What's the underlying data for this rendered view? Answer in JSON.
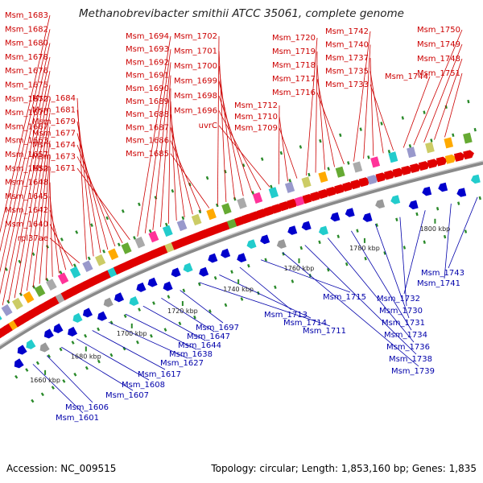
{
  "title": "Methanobrevibacter smithii ATCC 35061, complete genome",
  "footer": {
    "accession": "Accession: NC_009515",
    "summary": "Topology: circular; Length: 1,853,160 bp; Genes: 1,835"
  },
  "colors": {
    "forward_gene": "#e00000",
    "reverse_gene": "#0000cc",
    "forward_label": "#cc0000",
    "reverse_label": "#0000aa",
    "backbone": "#8a8a8a",
    "tick": "#2a8a2a"
  },
  "scale_labels": [
    "1660 kbp",
    "1680 kbp",
    "1700 kbp",
    "1720 kbp",
    "1740 kbp",
    "1760 kbp",
    "1780 kbp",
    "1800 kbp"
  ],
  "forward_labels": [
    "Msm_1683",
    "Msm_1682",
    "Msm_1680",
    "Msm_1678",
    "Msm_1676",
    "Msm_1675",
    "Msm_1672",
    "Msm_1670",
    "Msm_1667",
    "Msm_1663",
    "Msm_1657",
    "Msm_1652",
    "Msm_1648",
    "Msm_1645",
    "Msm_1642",
    "Msm_1640",
    "rpl37ae",
    "Msm_1684",
    "Msm_1681",
    "Msm_1679",
    "Msm_1677",
    "Msm_1674",
    "Msm_1673",
    "Msm_1671",
    "Msm_1694",
    "Msm_1693",
    "Msm_1692",
    "Msm_1691",
    "Msm_1690",
    "Msm_1689",
    "Msm_1688",
    "Msm_1687",
    "Msm_1686",
    "Msm_1685",
    "Msm_1702",
    "Msm_1701",
    "Msm_1700",
    "Msm_1699",
    "Msm_1698",
    "Msm_1696",
    "uvrC",
    "Msm_1712",
    "Msm_1710",
    "Msm_1709",
    "Msm_1720",
    "Msm_1719",
    "Msm_1718",
    "Msm_1717",
    "Msm_1716",
    "Msm_1742",
    "Msm_1740",
    "Msm_1737",
    "Msm_1735",
    "Msm_1733",
    "Msm_1744",
    "Msm_1750",
    "Msm_1749",
    "Msm_1748",
    "Msm_1751"
  ],
  "reverse_labels": [
    "Msm_1743",
    "Msm_1741",
    "Msm_1732",
    "Msm_1730",
    "Msm_1731",
    "Msm_1734",
    "Msm_1736",
    "Msm_1738",
    "Msm_1739",
    "Msm_1715",
    "Msm_1713",
    "Msm_1714",
    "Msm_1711",
    "Msm_1697",
    "Msm_1647",
    "Msm_1644",
    "Msm_1638",
    "Msm_1627",
    "Msm_1617",
    "Msm_1608",
    "Msm_1607",
    "Msm_1606",
    "Msm_1601"
  ]
}
